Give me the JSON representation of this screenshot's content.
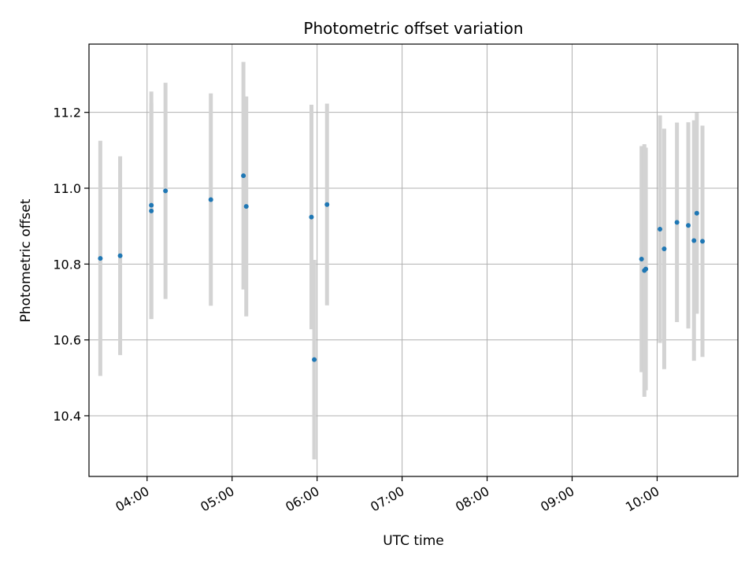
{
  "chart_data": {
    "type": "scatter",
    "title": "Photometric offset variation",
    "xlabel": "UTC time",
    "ylabel": "Photometric offset",
    "grid": true,
    "xlim": [
      "03:19",
      "10:57"
    ],
    "ylim": [
      10.24,
      11.38
    ],
    "x_ticks": [
      "04:00",
      "05:00",
      "06:00",
      "07:00",
      "08:00",
      "09:00",
      "10:00"
    ],
    "y_ticks": [
      10.4,
      10.6,
      10.8,
      11.0,
      11.2
    ],
    "colors": {
      "points": "#1f77b4",
      "errorbars": "#d3d3d3",
      "grid": "#b0b0b0"
    },
    "points": [
      {
        "x": "03:27",
        "y": 10.815,
        "err": 0.31
      },
      {
        "x": "03:41",
        "y": 10.822,
        "err": 0.262
      },
      {
        "x": "04:03",
        "y": 10.955,
        "err": 0.3
      },
      {
        "x": "04:03",
        "y": 10.94,
        "err": 0.285
      },
      {
        "x": "04:13",
        "y": 10.993,
        "err": 0.285
      },
      {
        "x": "04:45",
        "y": 10.97,
        "err": 0.28
      },
      {
        "x": "05:08",
        "y": 11.033,
        "err": 0.3
      },
      {
        "x": "05:10",
        "y": 10.952,
        "err": 0.29
      },
      {
        "x": "05:56",
        "y": 10.924,
        "err": 0.296
      },
      {
        "x": "05:58",
        "y": 10.548,
        "err": 0.263
      },
      {
        "x": "06:07",
        "y": 10.957,
        "err": 0.266
      },
      {
        "x": "09:49",
        "y": 10.813,
        "err": 0.298
      },
      {
        "x": "09:51",
        "y": 10.783,
        "err": 0.333
      },
      {
        "x": "09:52",
        "y": 10.787,
        "err": 0.32
      },
      {
        "x": "10:02",
        "y": 10.892,
        "err": 0.3
      },
      {
        "x": "10:05",
        "y": 10.84,
        "err": 0.317
      },
      {
        "x": "10:14",
        "y": 10.91,
        "err": 0.263
      },
      {
        "x": "10:22",
        "y": 10.902,
        "err": 0.272
      },
      {
        "x": "10:26",
        "y": 10.862,
        "err": 0.317
      },
      {
        "x": "10:28",
        "y": 10.934,
        "err": 0.265
      },
      {
        "x": "10:32",
        "y": 10.86,
        "err": 0.305
      }
    ]
  }
}
